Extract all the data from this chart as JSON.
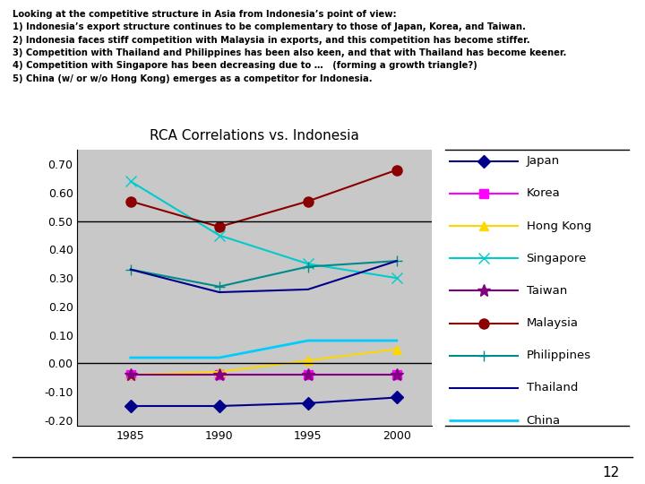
{
  "title": "RCA Correlations vs. Indonesia",
  "years": [
    1985,
    1990,
    1995,
    2000
  ],
  "series": {
    "Japan": {
      "values": [
        -0.15,
        -0.15,
        -0.14,
        -0.12
      ],
      "color": "#00008B",
      "marker": "D",
      "markersize": 7,
      "linewidth": 1.5
    },
    "Korea": {
      "values": [
        -0.04,
        -0.04,
        -0.04,
        -0.04
      ],
      "color": "#FF00FF",
      "marker": "s",
      "markersize": 7,
      "linewidth": 1.5
    },
    "Hong Kong": {
      "values": [
        -0.04,
        -0.03,
        0.01,
        0.05
      ],
      "color": "#FFD700",
      "marker": "^",
      "markersize": 7,
      "linewidth": 1.5
    },
    "Singapore": {
      "values": [
        0.64,
        0.45,
        0.35,
        0.3
      ],
      "color": "#00CCCC",
      "marker": "x",
      "markersize": 9,
      "linewidth": 1.5
    },
    "Taiwan": {
      "values": [
        -0.04,
        -0.04,
        -0.04,
        -0.04
      ],
      "color": "#800080",
      "marker": "*",
      "markersize": 10,
      "linewidth": 1.5
    },
    "Malaysia": {
      "values": [
        0.57,
        0.48,
        0.57,
        0.68
      ],
      "color": "#8B0000",
      "marker": "o",
      "markersize": 8,
      "linewidth": 1.5
    },
    "Philippines": {
      "values": [
        0.33,
        0.27,
        0.34,
        0.36
      ],
      "color": "#008B8B",
      "marker": "+",
      "markersize": 9,
      "linewidth": 1.5
    },
    "Thailand": {
      "values": [
        0.33,
        0.25,
        0.26,
        0.36
      ],
      "color": "#00008B",
      "marker": "None",
      "markersize": 0,
      "linewidth": 1.5
    },
    "China": {
      "values": [
        0.02,
        0.02,
        0.08,
        0.08
      ],
      "color": "#00CCFF",
      "marker": "None",
      "markersize": 0,
      "linewidth": 2.0
    }
  },
  "ylim": [
    -0.22,
    0.75
  ],
  "yticks": [
    -0.2,
    -0.1,
    0.0,
    0.1,
    0.2,
    0.3,
    0.4,
    0.5,
    0.6,
    0.7
  ],
  "ytick_labels": [
    "-0.20",
    "-0.10",
    "0.00",
    "0.10",
    "0.20",
    "0.30",
    "0.40",
    "0.50",
    "0.60",
    "0.70"
  ],
  "hlines": [
    0.0,
    0.5
  ],
  "plot_bg": "#C8C8C8",
  "header_text": "Looking at the competitive structure in Asia from Indonesia’s point of view:\n1) Indonesia’s export structure continues to be complementary to those of Japan, Korea, and Taiwan.\n2) Indonesia faces stiff competition with Malaysia in exports, and this competition has become stiffer.\n3) Competition with Thailand and Philippines has been also keen, and that with Thailand has become keener.\n4) Competition with Singapore has been decreasing due to …   (forming a growth triangle?)\n5) China (w/ or w/o Hong Kong) emerges as a competitor for Indonesia.",
  "page_number": "12",
  "legend_order": [
    "Japan",
    "Korea",
    "Hong Kong",
    "Singapore",
    "Taiwan",
    "Malaysia",
    "Philippines",
    "Thailand",
    "China"
  ]
}
